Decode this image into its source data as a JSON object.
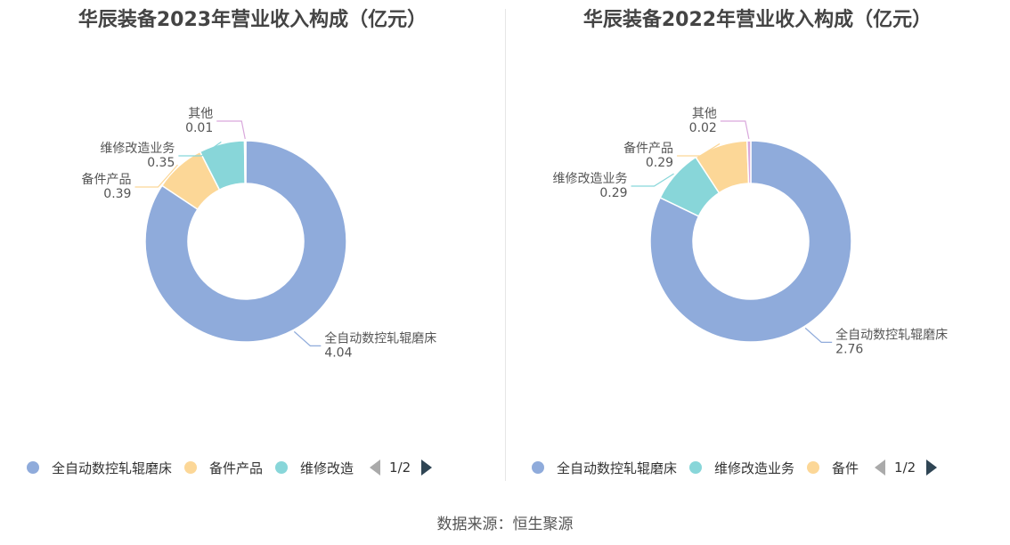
{
  "chart_data": [
    {
      "type": "pie",
      "title": "华辰装备2023年营业收入构成（亿元）",
      "slices": [
        {
          "name": "全自动数控轧辊磨床",
          "label": "4.04",
          "value": 4.04,
          "color": "#8fabdb"
        },
        {
          "name": "备件产品",
          "label": "0.39",
          "value": 0.39,
          "color": "#fcd797"
        },
        {
          "name": "维修改造业务",
          "label": "0.35",
          "value": 0.35,
          "color": "#88d6d9"
        },
        {
          "name": "其他",
          "label": "0.01",
          "value": 0.01,
          "color": "#d9a8dc"
        }
      ],
      "legend": {
        "items": [
          {
            "name": "全自动数控轧辊磨床",
            "color": "#8fabdb"
          },
          {
            "name": "备件产品",
            "color": "#fcd797"
          },
          {
            "name": "维修改造",
            "color": "#88d6d9"
          }
        ],
        "page": "1/2"
      }
    },
    {
      "type": "pie",
      "title": "华辰装备2022年营业收入构成（亿元）",
      "slices": [
        {
          "name": "全自动数控轧辊磨床",
          "label": "2.76",
          "value": 2.76,
          "color": "#8fabdb"
        },
        {
          "name": "维修改造业务",
          "label": "0.29",
          "value": 0.29,
          "color": "#88d6d9"
        },
        {
          "name": "备件产品",
          "label": "0.29",
          "value": 0.29,
          "color": "#fcd797"
        },
        {
          "name": "其他",
          "label": "0.02",
          "value": 0.02,
          "color": "#d9a8dc"
        }
      ],
      "legend": {
        "items": [
          {
            "name": "全自动数控轧辊磨床",
            "color": "#8fabdb"
          },
          {
            "name": "维修改造业务",
            "color": "#88d6d9"
          },
          {
            "name": "备件",
            "color": "#fcd797"
          }
        ],
        "page": "1/2"
      }
    }
  ],
  "source": "数据来源：恒生聚源"
}
